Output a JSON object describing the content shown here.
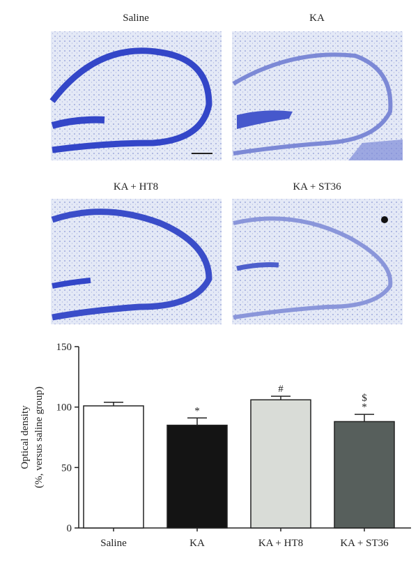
{
  "panels": [
    {
      "label": "Saline"
    },
    {
      "label": "KA"
    },
    {
      "label": "KA + HT8"
    },
    {
      "label": "KA + ST36"
    }
  ],
  "chart_data": {
    "type": "bar",
    "ylabel": [
      "Optical density",
      "(%, versus saline group)"
    ],
    "categories": [
      "Saline",
      "KA",
      "KA + HT8",
      "KA + ST36"
    ],
    "values": [
      101,
      85,
      106,
      88
    ],
    "errors": [
      3,
      6,
      3,
      6
    ],
    "colors": [
      "#ffffff",
      "#141414",
      "#d9dcd7",
      "#575f5c"
    ],
    "annotations": [
      [],
      [
        "*"
      ],
      [
        "#"
      ],
      [
        "$",
        "*"
      ]
    ],
    "ylim": [
      0,
      150
    ],
    "yticks": [
      0,
      50,
      100,
      150
    ]
  }
}
